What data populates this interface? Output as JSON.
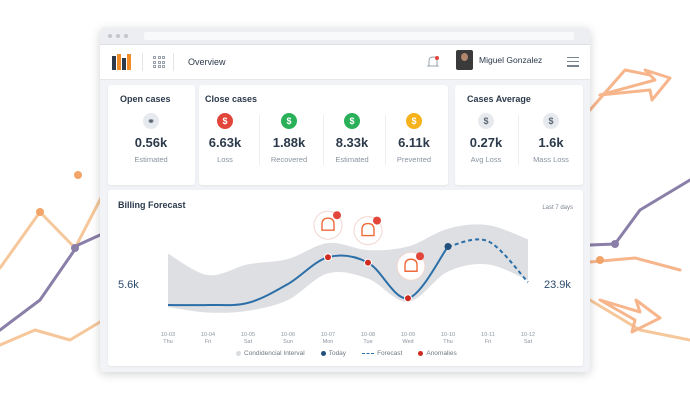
{
  "topbar": {
    "page": "Overview",
    "user_name": "Miguel Gonzalez"
  },
  "open_cases": {
    "title": "Open cases",
    "stats": [
      {
        "icon": "link-icon",
        "value": "0.56k",
        "label": "Estimated",
        "color": "#e6e9ed"
      }
    ]
  },
  "close_cases": {
    "title": "Close cases",
    "stats": [
      {
        "icon": "dollar-icon",
        "value": "6.63k",
        "label": "Loss",
        "color": "#e2453a"
      },
      {
        "icon": "money-icon",
        "value": "1.88k",
        "label": "Recovered",
        "color": "#2bb05a"
      },
      {
        "icon": "shield-dollar-icon",
        "value": "8.33k",
        "label": "Estimated",
        "color": "#2bb05a"
      },
      {
        "icon": "coins-icon",
        "value": "6.11k",
        "label": "Prevented",
        "color": "#f5b21b"
      }
    ]
  },
  "cases_average": {
    "title": "Cases Average",
    "stats": [
      {
        "icon": "bag-icon",
        "value": "0.27k",
        "label": "Avg Loss",
        "color": "#e6e9ed"
      },
      {
        "icon": "bags-icon",
        "value": "1.6k",
        "label": "Mass Loss",
        "color": "#e6e9ed"
      }
    ]
  },
  "billing": {
    "title": "Billing Forecast",
    "range": "Last 7 days"
  },
  "chart_data": {
    "type": "line",
    "title": "Billing Forecast",
    "x": [
      "10-03 Thu",
      "10-04 Fri",
      "10-05 Sat",
      "10-06 Sun",
      "10-07 Mon",
      "10-08 Tue",
      "10-09 Wed",
      "10-10 Thu",
      "10-11 Fri",
      "10-12 Sat"
    ],
    "tick_dates": [
      "10-03",
      "10-04",
      "10-05",
      "10-06",
      "10-07",
      "10-08",
      "10-09",
      "10-10",
      "10-11",
      "10-12"
    ],
    "tick_days": [
      "Thu",
      "Fri",
      "Sat",
      "Sun",
      "Mon",
      "Tue",
      "Wed",
      "Thu",
      "Fri",
      "Sat"
    ],
    "left_value_label": "5.6k",
    "right_value_label": "23.9k",
    "series": [
      {
        "name": "Today",
        "color": "#2c6fa8",
        "values": [
          5.6,
          5.6,
          6.2,
          11.5,
          19.0,
          17.5,
          7.5,
          22.0,
          null,
          null
        ]
      },
      {
        "name": "Forecast",
        "color": "#2c6fa8",
        "values": [
          null,
          null,
          null,
          null,
          null,
          null,
          null,
          22.0,
          23.5,
          12.0
        ]
      }
    ],
    "confidence_interval": {
      "name": "Condidencial Interval",
      "color": "#d9dcdf",
      "upper": [
        20.0,
        14.0,
        17.0,
        18.5,
        23.0,
        21.0,
        22.0,
        27.0,
        28.0,
        24.0
      ],
      "lower": [
        5.0,
        3.5,
        4.0,
        7.0,
        14.5,
        13.0,
        6.5,
        15.0,
        17.0,
        12.5
      ]
    },
    "anomalies": {
      "name": "Anomalies",
      "color": "#cf2a1f",
      "x_index": [
        4,
        5,
        6
      ]
    },
    "legend": [
      "Condidencial Interval",
      "Today",
      "Forecast",
      "Anomalies"
    ],
    "legend_position": "bottom",
    "ylim": [
      0,
      30
    ]
  }
}
